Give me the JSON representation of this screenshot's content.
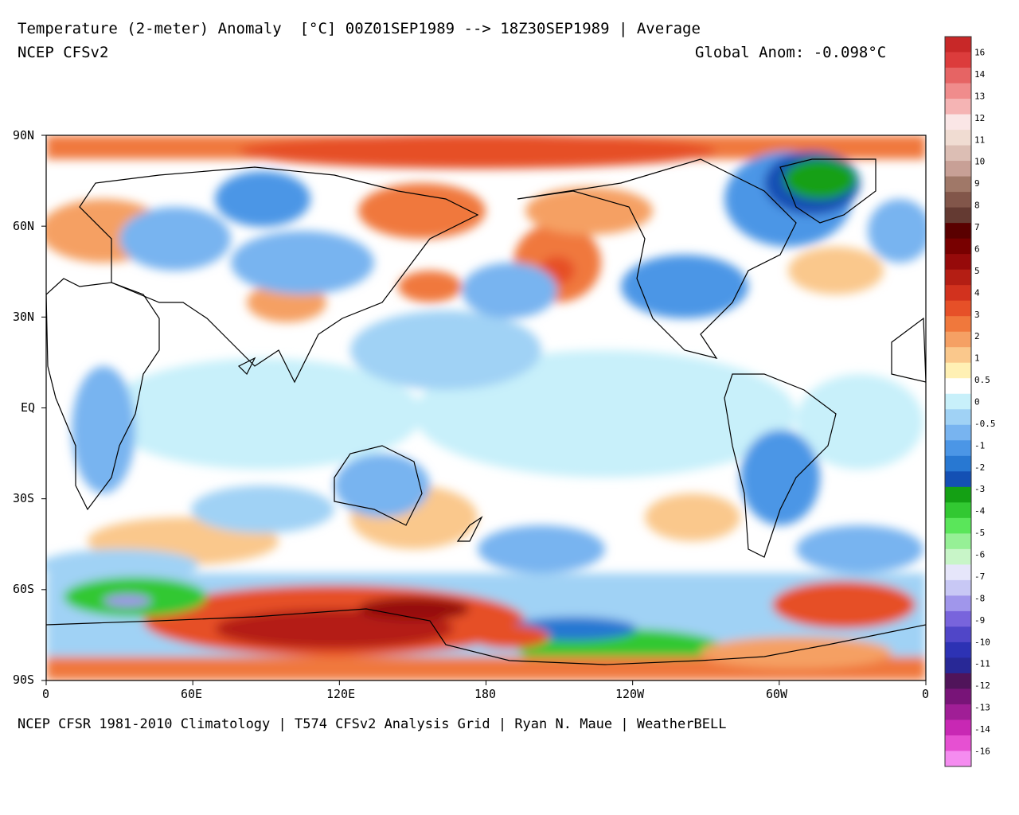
{
  "header": {
    "title_line": "Temperature (2-meter) Anomaly  [°C] 00Z01SEP1989 --> 18Z30SEP1989 | Average",
    "model": "NCEP CFSv2",
    "global_anom": "Global Anom: -0.098°C"
  },
  "footer": "NCEP CFSR 1981-2010 Climatology | T574 CFSv2 Analysis Grid | Ryan N. Maue | WeatherBELL",
  "axes": {
    "lat_labels": [
      "90N",
      "60N",
      "30N",
      "EQ",
      "30S",
      "60S",
      "90S"
    ],
    "lon_labels": [
      "0",
      "60E",
      "120E",
      "180",
      "120W",
      "60W",
      "0"
    ]
  },
  "colorbar": {
    "labels": [
      "16",
      "14",
      "13",
      "12",
      "11",
      "10",
      "9",
      "8",
      "7",
      "6",
      "5",
      "4",
      "3",
      "2",
      "1",
      "0.5",
      "0",
      "-0.5",
      "-1",
      "-2",
      "-3",
      "-4",
      "-5",
      "-6",
      "-7",
      "-8",
      "-9",
      "-10",
      "-11",
      "-12",
      "-13",
      "-14",
      "-16"
    ],
    "colors": [
      "#c82828",
      "#dc3c3c",
      "#e66464",
      "#f08c8c",
      "#f5b4b4",
      "#fae6e6",
      "#f0dcd2",
      "#dcbeb4",
      "#c8a096",
      "#a07868",
      "#82564a",
      "#643a32",
      "#5a0000",
      "#780000",
      "#960a0a",
      "#b41e14",
      "#d2321e",
      "#e65028",
      "#f0783c",
      "#f5a064",
      "#fac88c",
      "#fff0b4",
      "#ffffff",
      "#c8f0fa",
      "#a0d2f5",
      "#78b4f0",
      "#4b96e6",
      "#2878d2",
      "#1450b4",
      "#14a014",
      "#32c832",
      "#5ae65a",
      "#96f096",
      "#c8f5c8",
      "#e6e6fa",
      "#c8c8f5",
      "#a096eb",
      "#7864dc",
      "#5046c8",
      "#2d32b4",
      "#282896",
      "#50145a",
      "#781478",
      "#a01e96",
      "#c828b4",
      "#e650d2",
      "#f58cf0"
    ]
  },
  "map": {
    "projection": "equirectangular, 0-360 longitude",
    "field": "2-m temperature anomaly"
  }
}
